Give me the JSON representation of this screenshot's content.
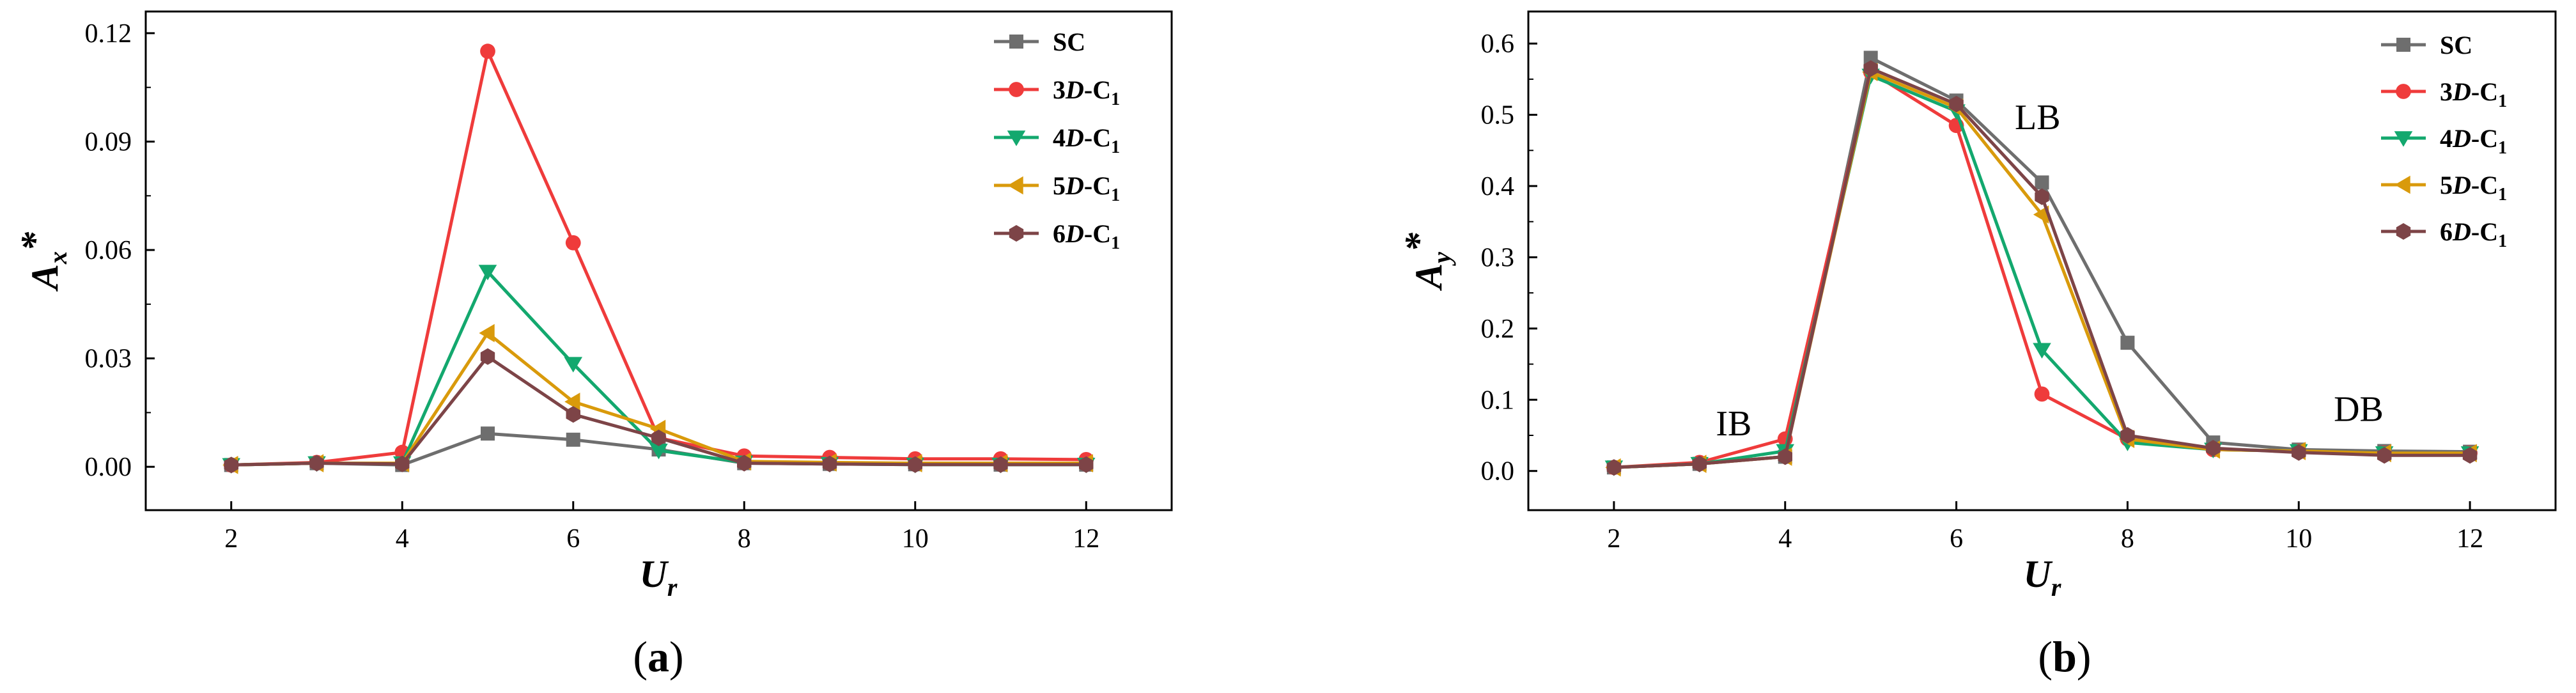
{
  "panels": [
    {
      "label": "a",
      "ylabel_main": "A",
      "ylabel_sub": "x",
      "ylabel_sup": "*"
    },
    {
      "label": "b",
      "ylabel_main": "A",
      "ylabel_sub": "y",
      "ylabel_sup": "*"
    }
  ],
  "xlabel_main": "U",
  "xlabel_sub": "r",
  "legend": [
    {
      "prefix": "",
      "italic": "",
      "suffix": "SC",
      "sub": ""
    },
    {
      "prefix": "3",
      "italic": "D",
      "suffix": "-C",
      "sub": "1"
    },
    {
      "prefix": "4",
      "italic": "D",
      "suffix": "-C",
      "sub": "1"
    },
    {
      "prefix": "5",
      "italic": "D",
      "suffix": "-C",
      "sub": "1"
    },
    {
      "prefix": "6",
      "italic": "D",
      "suffix": "-C",
      "sub": "1"
    }
  ],
  "annotations": {
    "ib": "IB",
    "lb": "LB",
    "db": "DB"
  },
  "chart_data": [
    {
      "type": "line",
      "xlabel": "Ur",
      "ylabel": "Ax*",
      "xlim": [
        1,
        13
      ],
      "ylim": [
        -0.012,
        0.126
      ],
      "xticks": [
        2,
        4,
        6,
        8,
        10,
        12
      ],
      "yticks": [
        0.0,
        0.03,
        0.06,
        0.09,
        0.12
      ],
      "ytick_labels": [
        "0.00",
        "0.03",
        "0.06",
        "0.09",
        "0.12"
      ],
      "grid": false,
      "legend_position": "top-right",
      "x": [
        2,
        3,
        4,
        5,
        6,
        7,
        8,
        9,
        10,
        11,
        12
      ],
      "series": [
        {
          "name": "SC",
          "color": "#6e6e6e",
          "marker": "square",
          "values": [
            0.0005,
            0.001,
            0.0005,
            0.0092,
            0.0075,
            0.0048,
            0.001,
            0.0008,
            0.0007,
            0.0006,
            0.0006
          ]
        },
        {
          "name": "3D-C1",
          "color": "#ef3b3b",
          "marker": "circle",
          "values": [
            0.0005,
            0.0012,
            0.004,
            0.115,
            0.062,
            0.008,
            0.003,
            0.0026,
            0.0022,
            0.0022,
            0.002
          ]
        },
        {
          "name": "4D-C1",
          "color": "#13a86e",
          "marker": "triangle-down",
          "values": [
            0.0005,
            0.001,
            0.001,
            0.054,
            0.0285,
            0.0045,
            0.0012,
            0.0008,
            0.0006,
            0.0006,
            0.0006
          ]
        },
        {
          "name": "5D-C1",
          "color": "#d99a0b",
          "marker": "triangle-left",
          "values": [
            0.0005,
            0.001,
            0.001,
            0.037,
            0.018,
            0.0105,
            0.0015,
            0.0012,
            0.001,
            0.001,
            0.001
          ]
        },
        {
          "name": "6D-C1",
          "color": "#7d4447",
          "marker": "hexagon",
          "values": [
            0.0005,
            0.001,
            0.0008,
            0.0305,
            0.0145,
            0.008,
            0.001,
            0.0008,
            0.0006,
            0.0006,
            0.0006
          ]
        }
      ]
    },
    {
      "type": "line",
      "xlabel": "Ur",
      "ylabel": "Ay*",
      "xlim": [
        1,
        13
      ],
      "ylim": [
        -0.055,
        0.645
      ],
      "xticks": [
        2,
        4,
        6,
        8,
        10,
        12
      ],
      "yticks": [
        0.0,
        0.1,
        0.2,
        0.3,
        0.4,
        0.5,
        0.6
      ],
      "ytick_labels": [
        "0.0",
        "0.1",
        "0.2",
        "0.3",
        "0.4",
        "0.5",
        "0.6"
      ],
      "grid": false,
      "legend_position": "top-right",
      "annotations": [
        {
          "text": "IB",
          "x": 3.4,
          "y": 0.05
        },
        {
          "text": "LB",
          "x": 6.95,
          "y": 0.48
        },
        {
          "text": "DB",
          "x": 10.7,
          "y": 0.07
        }
      ],
      "x": [
        2,
        3,
        4,
        5,
        6,
        7,
        8,
        9,
        10,
        11,
        12
      ],
      "series": [
        {
          "name": "SC",
          "color": "#6e6e6e",
          "marker": "square",
          "values": [
            0.005,
            0.01,
            0.02,
            0.58,
            0.52,
            0.405,
            0.18,
            0.04,
            0.03,
            0.028,
            0.027
          ]
        },
        {
          "name": "3D-C1",
          "color": "#ef3b3b",
          "marker": "circle",
          "values": [
            0.005,
            0.012,
            0.045,
            0.56,
            0.485,
            0.108,
            0.045,
            0.03,
            0.028,
            0.025,
            0.025
          ]
        },
        {
          "name": "4D-C1",
          "color": "#13a86e",
          "marker": "triangle-down",
          "values": [
            0.005,
            0.01,
            0.028,
            0.555,
            0.505,
            0.17,
            0.04,
            0.03,
            0.028,
            0.025,
            0.025
          ]
        },
        {
          "name": "5D-C1",
          "color": "#d99a0b",
          "marker": "triangle-left",
          "values": [
            0.005,
            0.01,
            0.02,
            0.56,
            0.51,
            0.36,
            0.045,
            0.03,
            0.028,
            0.025,
            0.025
          ]
        },
        {
          "name": "6D-C1",
          "color": "#7d4447",
          "marker": "hexagon",
          "values": [
            0.005,
            0.01,
            0.02,
            0.565,
            0.515,
            0.385,
            0.05,
            0.032,
            0.026,
            0.022,
            0.022
          ]
        }
      ]
    }
  ]
}
